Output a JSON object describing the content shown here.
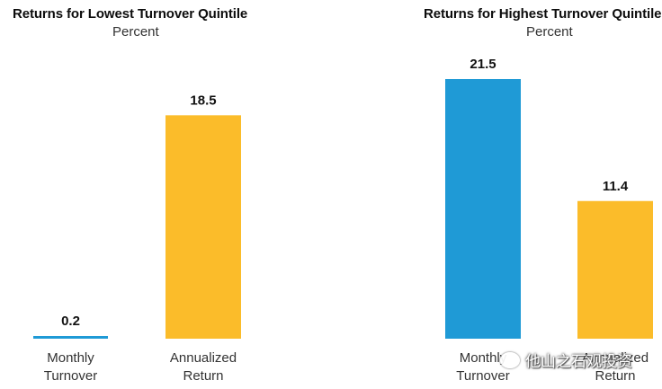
{
  "colors": {
    "turnover": "#1f9ad6",
    "return": "#fbbc2a",
    "text": "#111111",
    "muted": "#333333"
  },
  "chart_data": [
    {
      "type": "bar",
      "title": "Returns for Lowest Turnover Quintile",
      "subtitle": "Percent",
      "categories": [
        "Monthly Turnover",
        "Annualized Return"
      ],
      "category_lines": [
        [
          "Monthly",
          "Turnover"
        ],
        [
          "Annualized",
          "Return"
        ]
      ],
      "values": [
        0.2,
        18.5
      ],
      "value_labels": [
        "0.2",
        "18.5"
      ],
      "colors": [
        "#1f9ad6",
        "#fbbc2a"
      ],
      "ylim": [
        0,
        21.5
      ],
      "grid": false,
      "legend": "none"
    },
    {
      "type": "bar",
      "title": "Returns for Highest Turnover Quintile",
      "subtitle": "Percent",
      "categories": [
        "Monthly Turnover",
        "Annualized Return"
      ],
      "category_lines": [
        [
          "Monthly",
          "Turnover"
        ],
        [
          "Annualized",
          "Return"
        ]
      ],
      "values": [
        21.5,
        11.4
      ],
      "value_labels": [
        "21.5",
        "11.4"
      ],
      "colors": [
        "#1f9ad6",
        "#fbbc2a"
      ],
      "ylim": [
        0,
        21.5
      ],
      "grid": false,
      "legend": "none"
    }
  ],
  "watermark": {
    "text": "他山之石观投资",
    "icon": "wechat-icon"
  }
}
